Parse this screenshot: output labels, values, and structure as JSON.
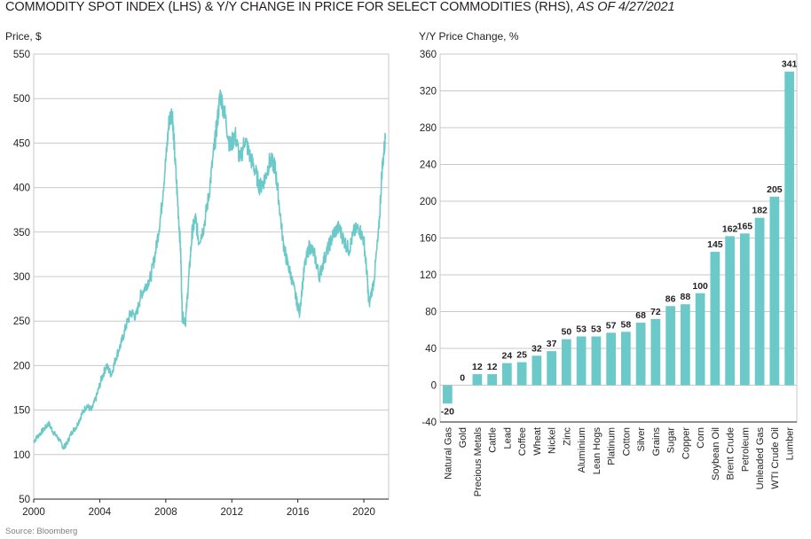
{
  "header": {
    "title_main": "COMMODITY SPOT INDEX (LHS) & Y/Y CHANGE IN PRICE FOR SELECT COMMODITIES (RHS),",
    "title_date": "AS OF 4/27/2021"
  },
  "footer": {
    "source": "Source: Bloomberg"
  },
  "colors": {
    "series": "#6cc9c9",
    "grid": "#c8c8c8",
    "axis": "#231f20"
  },
  "chart_data": [
    {
      "type": "line",
      "ylabel": "Price, $",
      "ylim": [
        50,
        550
      ],
      "yticks": [
        50,
        100,
        150,
        200,
        250,
        300,
        350,
        400,
        450,
        500,
        550
      ],
      "xlim": [
        2000,
        2021.5
      ],
      "xticks": [
        2000,
        2004,
        2008,
        2012,
        2016,
        2020
      ],
      "grid": "horizontal",
      "series": [
        {
          "x": [
            2000.0,
            2000.3,
            2000.6,
            2000.9,
            2001.2,
            2001.5,
            2001.8,
            2002.0,
            2002.3,
            2002.6,
            2002.9,
            2003.2,
            2003.5,
            2003.8,
            2004.1,
            2004.4,
            2004.7,
            2005.0,
            2005.3,
            2005.6,
            2005.9,
            2006.2,
            2006.5,
            2006.8,
            2007.1,
            2007.4,
            2007.7,
            2008.0,
            2008.2,
            2008.4,
            2008.5,
            2008.7,
            2008.9,
            2009.0,
            2009.2,
            2009.4,
            2009.6,
            2009.8,
            2010.0,
            2010.3,
            2010.6,
            2010.9,
            2011.1,
            2011.3,
            2011.6,
            2011.9,
            2012.2,
            2012.5,
            2012.8,
            2013.1,
            2013.4,
            2013.7,
            2014.0,
            2014.3,
            2014.6,
            2014.8,
            2015.1,
            2015.3,
            2015.6,
            2015.9,
            2016.1,
            2016.4,
            2016.7,
            2017.0,
            2017.3,
            2017.6,
            2017.9,
            2018.2,
            2018.5,
            2018.8,
            2019.1,
            2019.4,
            2019.7,
            2020.0,
            2020.2,
            2020.3,
            2020.6,
            2020.9,
            2021.1,
            2021.3
          ],
          "values": [
            115,
            122,
            128,
            135,
            125,
            118,
            108,
            112,
            125,
            132,
            145,
            155,
            150,
            165,
            185,
            200,
            190,
            210,
            225,
            245,
            260,
            255,
            280,
            290,
            300,
            330,
            370,
            430,
            475,
            485,
            450,
            390,
            330,
            255,
            250,
            300,
            350,
            365,
            340,
            355,
            390,
            440,
            470,
            505,
            480,
            445,
            460,
            430,
            455,
            435,
            420,
            400,
            410,
            430,
            425,
            395,
            340,
            320,
            300,
            275,
            260,
            310,
            335,
            325,
            300,
            320,
            335,
            350,
            355,
            340,
            330,
            350,
            355,
            340,
            300,
            268,
            295,
            350,
            420,
            455
          ]
        }
      ]
    },
    {
      "type": "bar",
      "ylabel": "Y/Y Price Change, %",
      "ylim": [
        -40,
        360
      ],
      "yticks": [
        -40,
        0,
        40,
        80,
        120,
        160,
        200,
        240,
        280,
        320,
        360
      ],
      "grid": "horizontal",
      "categories": [
        "Natural Gas",
        "Gold",
        "Precious Metals",
        "Cattle",
        "Lead",
        "Coffee",
        "Wheat",
        "Nickel",
        "Zinc",
        "Aluminium",
        "Lean Hogs",
        "Platinum",
        "Cotton",
        "Silver",
        "Grains",
        "Sugar",
        "Copper",
        "Corn",
        "Soybean Oil",
        "Brent Crude",
        "Petroleum",
        "Unleaded Gas",
        "WTI Crude Oil",
        "Lumber"
      ],
      "values": [
        -20,
        0,
        12,
        12,
        24,
        25,
        32,
        37,
        50,
        53,
        53,
        57,
        58,
        68,
        72,
        86,
        88,
        100,
        145,
        162,
        165,
        182,
        205,
        341
      ],
      "labels": [
        "-20",
        "0",
        "12",
        "12",
        "24",
        "25",
        "32",
        "37",
        "50",
        "53",
        "53",
        "57",
        "58",
        "68",
        "72",
        "86",
        "88",
        "100",
        "145",
        "162",
        "165",
        "182",
        "205",
        "341"
      ]
    }
  ]
}
